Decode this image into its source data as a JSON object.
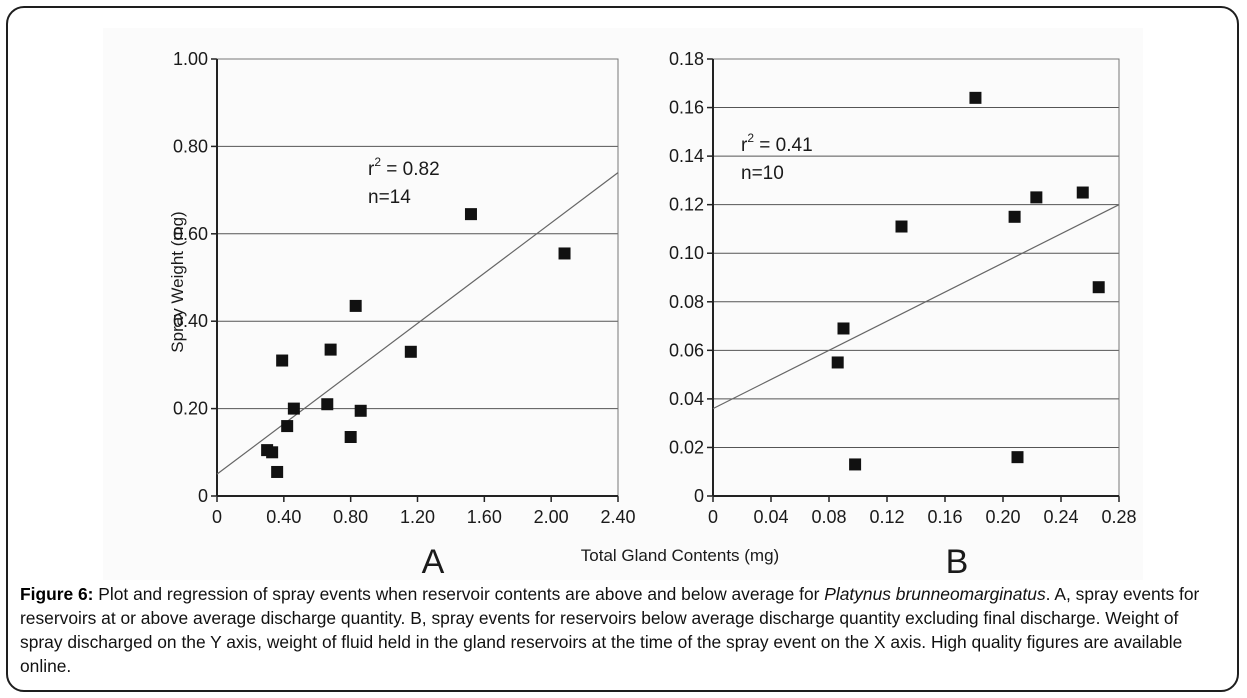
{
  "caption": {
    "label": "Figure 6:",
    "text_before_species": " Plot and regression of spray events when reservoir contents are above and below average for ",
    "species": "Platynus brunneomarginatus",
    "text_after_species": ". A, spray events for reservoirs at or above average discharge quantity. B, spray events for reservoirs below average discharge quantity excluding final discharge. Weight of spray discharged on the Y axis, weight of fluid held in the gland reservoirs at the time of the spray event on the X axis. High quality figures are available online."
  },
  "shared_labels": {
    "ylabel": "Spray Weight (mg)",
    "xlabel": "Total Gland Contents (mg)"
  },
  "chart_data": [
    {
      "type": "scatter",
      "panel_label": "A",
      "xlim": [
        0,
        2.4
      ],
      "ylim": [
        0,
        1.0
      ],
      "x_ticks": [
        "0",
        "0.40",
        "0.80",
        "1.20",
        "1.60",
        "2.00",
        "2.40"
      ],
      "y_ticks": [
        "0",
        "0.20",
        "0.40",
        "0.60",
        "0.80",
        "1.00"
      ],
      "grid": "horizontal",
      "annotation": {
        "r2_prefix": "r",
        "r2_sup": "2",
        "r2_value": " = 0.82",
        "n": "n=14"
      },
      "points": [
        {
          "x": 0.3,
          "y": 0.105
        },
        {
          "x": 0.33,
          "y": 0.1
        },
        {
          "x": 0.36,
          "y": 0.055
        },
        {
          "x": 0.39,
          "y": 0.31
        },
        {
          "x": 0.42,
          "y": 0.16
        },
        {
          "x": 0.46,
          "y": 0.2
        },
        {
          "x": 0.66,
          "y": 0.21
        },
        {
          "x": 0.68,
          "y": 0.335
        },
        {
          "x": 0.8,
          "y": 0.135
        },
        {
          "x": 0.83,
          "y": 0.435
        },
        {
          "x": 0.86,
          "y": 0.195
        },
        {
          "x": 1.16,
          "y": 0.33
        },
        {
          "x": 1.52,
          "y": 0.645
        },
        {
          "x": 2.08,
          "y": 0.555
        }
      ],
      "regression": {
        "x": [
          0,
          2.4
        ],
        "y": [
          0.05,
          0.74
        ]
      }
    },
    {
      "type": "scatter",
      "panel_label": "B",
      "xlim": [
        0,
        0.28
      ],
      "ylim": [
        0,
        0.18
      ],
      "x_ticks": [
        "0",
        "0.04",
        "0.08",
        "0.12",
        "0.16",
        "0.20",
        "0.24",
        "0.28"
      ],
      "y_ticks": [
        "0",
        "0.02",
        "0.04",
        "0.06",
        "0.08",
        "0.10",
        "0.12",
        "0.14",
        "0.16",
        "0.18"
      ],
      "grid": "horizontal",
      "annotation": {
        "r2_prefix": "r",
        "r2_sup": "2",
        "r2_value": " = 0.41",
        "n": "n=10"
      },
      "points": [
        {
          "x": 0.086,
          "y": 0.055
        },
        {
          "x": 0.09,
          "y": 0.069
        },
        {
          "x": 0.098,
          "y": 0.013
        },
        {
          "x": 0.13,
          "y": 0.111
        },
        {
          "x": 0.181,
          "y": 0.164
        },
        {
          "x": 0.208,
          "y": 0.115
        },
        {
          "x": 0.21,
          "y": 0.016
        },
        {
          "x": 0.223,
          "y": 0.123
        },
        {
          "x": 0.255,
          "y": 0.125
        },
        {
          "x": 0.266,
          "y": 0.086
        }
      ],
      "regression": {
        "x": [
          0,
          0.28
        ],
        "y": [
          0.036,
          0.12
        ]
      }
    }
  ]
}
